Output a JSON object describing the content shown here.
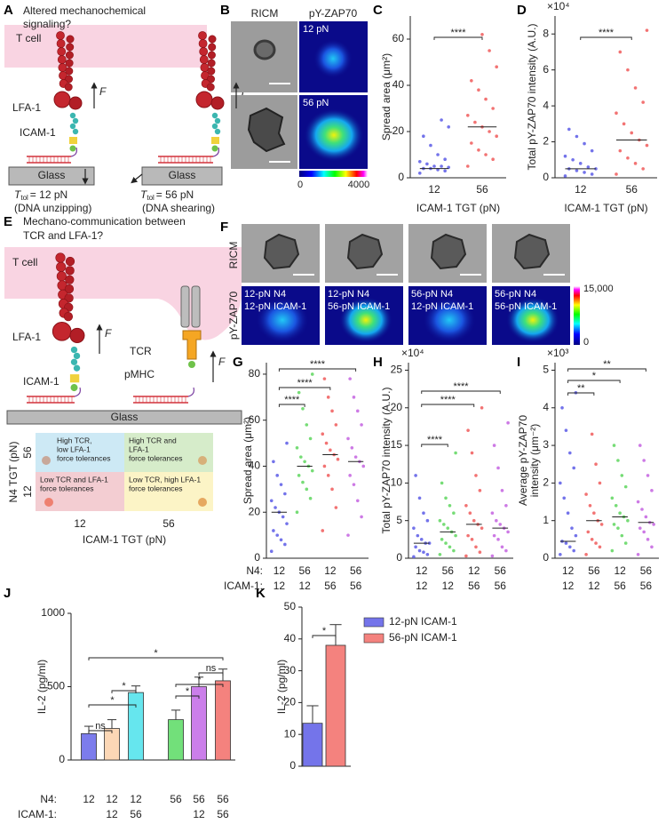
{
  "panel_labels": [
    "A",
    "B",
    "C",
    "D",
    "E",
    "F",
    "G",
    "H",
    "I",
    "J",
    "K"
  ],
  "panel_a": {
    "question_lines": [
      "Altered mechanochemical",
      "signaling?"
    ],
    "cell": "T cell",
    "lfa1": "LFA-1",
    "force": "F",
    "icam1": "ICAM-1",
    "glass": "Glass",
    "t_symbol": "T",
    "t_sub": "tol",
    "tolerances": [
      "= 12 pN",
      "= 56 pN"
    ],
    "modes": [
      "(DNA unzipping)",
      "(DNA shearing)"
    ]
  },
  "panel_b": {
    "columns": [
      "RICM",
      "pY-ZAP70"
    ],
    "rows": [
      "12 pN",
      "56 pN"
    ],
    "colorbar_labels": [
      "0",
      "4000"
    ]
  },
  "panel_e": {
    "question_lines": [
      "Mechano-communication between",
      "TCR and LFA-1?"
    ],
    "cell": "T cell",
    "lfa1": "LFA-1",
    "force": "F",
    "icam1": "ICAM-1",
    "tcr": "TCR",
    "pmhc": "pMHC",
    "glass": "Glass",
    "quadrants": [
      {
        "lines": [
          "High TCR,",
          "low LFA-1",
          "force tolerances"
        ]
      },
      {
        "lines": [
          "High TCR and",
          "LFA-1",
          "force tolerances"
        ]
      },
      {
        "lines": [
          "Low TCR and LFA-1",
          "force tolerances"
        ]
      },
      {
        "lines": [
          "Low TCR, high LFA-1",
          "force tolerances"
        ]
      }
    ],
    "ylabel": "N4 TGT (pN)",
    "yticks": [
      "56",
      "12"
    ],
    "xticks": [
      "12",
      "56"
    ],
    "xlabel": "ICAM-1 TGT (pN)"
  },
  "panel_f": {
    "rows": [
      "RICM",
      "pY-ZAP70"
    ],
    "conditions": [
      [
        "12-pN N4",
        "12-pN ICAM-1"
      ],
      [
        "12-pN N4",
        "56-pN ICAM-1"
      ],
      [
        "56-pN N4",
        "12-pN ICAM-1"
      ],
      [
        "56-pN N4",
        "56-pN ICAM-1"
      ]
    ],
    "colorbar_labels": [
      "15,000",
      "0"
    ]
  },
  "chart_data": [
    {
      "type": "scatter",
      "ylabel": [
        "Spread area (μm²)"
      ],
      "xlabel": "ICAM-1 TGT (pN)",
      "categories": [
        "12",
        "56"
      ],
      "ylim": [
        0,
        70
      ],
      "yticks": [
        0,
        20,
        40,
        60
      ],
      "series": [
        {
          "color": "#5a5ae6",
          "values": [
            2,
            3,
            3.5,
            4,
            4,
            4.5,
            5,
            5,
            6,
            7,
            8,
            10,
            14,
            18,
            22,
            25
          ],
          "median": 4
        },
        {
          "color": "#f05a5a",
          "values": [
            5,
            8,
            10,
            12,
            15,
            18,
            20,
            22,
            24,
            27,
            30,
            34,
            38,
            42,
            48,
            55,
            62
          ],
          "median": 22
        }
      ],
      "significance": [
        "****"
      ]
    },
    {
      "type": "scatter",
      "ylabel": [
        "Total pY-ZAP70 intensity (A.U.)"
      ],
      "exponent": "×10⁴",
      "xlabel": "ICAM-1 TGT (pN)",
      "categories": [
        "12",
        "56"
      ],
      "ylim": [
        0,
        9
      ],
      "yticks": [
        0,
        2,
        4,
        6,
        8
      ],
      "series": [
        {
          "color": "#5a5ae6",
          "values": [
            0.1,
            0.2,
            0.3,
            0.4,
            0.5,
            0.5,
            0.6,
            0.8,
            1,
            1.2,
            1.5,
            1.9,
            2.3,
            2.7
          ],
          "median": 0.5
        },
        {
          "color": "#f05a5a",
          "values": [
            0.2,
            0.5,
            0.8,
            1.1,
            1.5,
            1.8,
            2.1,
            2.5,
            3,
            3.6,
            4.2,
            5,
            6,
            7,
            8.2
          ],
          "median": 2.1
        }
      ],
      "significance": [
        "****"
      ]
    },
    {
      "type": "scatter",
      "ylabel": [
        "Spread area (μm²)"
      ],
      "row_labels": [
        "N4:",
        "ICAM-1:"
      ],
      "categories": [
        "12",
        "56",
        "12",
        "56"
      ],
      "categories_2": [
        "12",
        "12",
        "56",
        "56"
      ],
      "ylim": [
        0,
        85
      ],
      "yticks": [
        0,
        20,
        40,
        60,
        80
      ],
      "series": [
        {
          "color": "#5a5ae6",
          "values": [
            3,
            6,
            8,
            10,
            12,
            15,
            18,
            20,
            22,
            25,
            28,
            32,
            36,
            42,
            50
          ],
          "median": 20
        },
        {
          "color": "#5ed65e",
          "values": [
            20,
            26,
            30,
            33,
            36,
            38,
            40,
            42,
            44,
            48,
            52,
            58,
            65,
            72,
            80
          ],
          "median": 40
        },
        {
          "color": "#f05a5a",
          "values": [
            12,
            22,
            30,
            36,
            40,
            43,
            45,
            47,
            50,
            54,
            58,
            64,
            70,
            78
          ],
          "median": 45
        },
        {
          "color": "#c463e0",
          "values": [
            10,
            18,
            25,
            32,
            36,
            40,
            42,
            44,
            48,
            52,
            58,
            64,
            70,
            78
          ],
          "median": 42
        }
      ],
      "significance": [
        "****",
        "****",
        "****"
      ]
    },
    {
      "type": "scatter",
      "ylabel": [
        "Total pY-ZAP70 intensity (A.U.)"
      ],
      "exponent": "×10⁴",
      "categories": [
        "12",
        "56",
        "12",
        "56"
      ],
      "categories_2": [
        "12",
        "12",
        "56",
        "56"
      ],
      "ylim": [
        0,
        26
      ],
      "yticks": [
        0,
        5,
        10,
        15,
        20,
        25
      ],
      "series": [
        {
          "color": "#5a5ae6",
          "values": [
            0.2,
            0.5,
            0.8,
            1,
            1.5,
            2,
            2,
            2.5,
            3,
            4,
            5,
            6,
            8,
            11
          ],
          "median": 2
        },
        {
          "color": "#5ed65e",
          "values": [
            0.5,
            1,
            1.5,
            2,
            2.5,
            3,
            3.5,
            4,
            4.5,
            5,
            6,
            7,
            8,
            10,
            14
          ],
          "median": 3.5
        },
        {
          "color": "#f05a5a",
          "values": [
            0.3,
            0.8,
            1.5,
            2.5,
            3,
            4,
            4.5,
            5,
            6,
            7,
            9,
            11,
            14,
            17,
            20
          ],
          "median": 4.5
        },
        {
          "color": "#c463e0",
          "values": [
            0.3,
            1,
            1.5,
            2.5,
            3,
            3.5,
            4,
            4.5,
            5,
            6,
            7,
            9,
            12,
            15,
            18
          ],
          "median": 4
        }
      ],
      "significance": [
        "****",
        "****",
        "****"
      ]
    },
    {
      "type": "scatter",
      "ylabel": [
        "Average pY-ZAP70",
        "intensity (μm⁻²)"
      ],
      "exponent": "×10³",
      "categories": [
        "12",
        "56",
        "12",
        "56"
      ],
      "categories_2": [
        "12",
        "12",
        "56",
        "56"
      ],
      "ylim": [
        0,
        5.2
      ],
      "yticks": [
        0,
        1,
        2,
        3,
        4,
        5
      ],
      "series": [
        {
          "color": "#5a5ae6",
          "values": [
            0.1,
            0.2,
            0.3,
            0.4,
            0.45,
            0.6,
            0.8,
            1.2,
            1.6,
            2,
            2.4,
            2.8,
            3.4,
            4,
            4.4
          ],
          "median": 0.45
        },
        {
          "color": "#f05a5a",
          "values": [
            0.1,
            0.3,
            0.4,
            0.5,
            0.7,
            0.9,
            1,
            1.2,
            1.4,
            1.7,
            2,
            2.5,
            3.3
          ],
          "median": 1
        },
        {
          "color": "#5ed65e",
          "values": [
            0.2,
            0.4,
            0.6,
            0.8,
            0.9,
            1,
            1.1,
            1.2,
            1.4,
            1.6,
            1.9,
            2.2,
            2.6,
            3
          ],
          "median": 1.1
        },
        {
          "color": "#c463e0",
          "values": [
            0.1,
            0.3,
            0.5,
            0.7,
            0.8,
            0.9,
            0.95,
            1.1,
            1.3,
            1.5,
            1.8,
            2.2,
            2.6,
            3
          ],
          "median": 0.95
        }
      ],
      "significance": [
        "**",
        "*",
        "**"
      ]
    },
    {
      "type": "bar",
      "ylabel": [
        "IL-2 (pg/ml)"
      ],
      "row_labels": [
        "N4:",
        "ICAM-1:"
      ],
      "categories": [
        "12",
        "12",
        "12",
        "56",
        "56",
        "56"
      ],
      "categories_2": [
        null,
        "12",
        "56",
        null,
        "12",
        "56"
      ],
      "values": [
        180,
        215,
        460,
        275,
        500,
        540
      ],
      "errors": [
        50,
        60,
        45,
        65,
        65,
        80
      ],
      "colors": [
        "#7c7cec",
        "#fcd7b6",
        "#66e6ee",
        "#72e07a",
        "#cb7eea",
        "#f4827e"
      ],
      "ylim": [
        0,
        1000
      ],
      "yticks": [
        0,
        500,
        1000
      ],
      "significance": [
        "ns",
        "*",
        "*",
        "*",
        "ns",
        "*",
        "*"
      ]
    },
    {
      "type": "bar",
      "ylabel": [
        "IL-2 (pg/ml)"
      ],
      "ylim": [
        0,
        50
      ],
      "yticks": [
        0,
        10,
        20,
        30,
        40,
        50
      ],
      "legend": "upper right",
      "series": [
        {
          "name": "12-pN ICAM-1",
          "color": "#7474ea",
          "values": [
            13.5
          ],
          "errors": [
            5.5
          ]
        },
        {
          "name": "56-pN ICAM-1",
          "color": "#f4827e",
          "values": [
            38
          ],
          "errors": [
            6.5
          ]
        }
      ],
      "significance": [
        "*"
      ]
    }
  ]
}
